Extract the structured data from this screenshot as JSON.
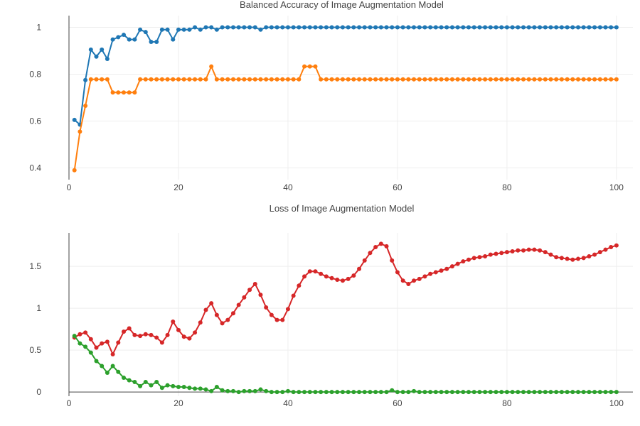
{
  "chart_data": [
    {
      "type": "line",
      "title": "Balanced Accuracy of Image Augmentation Model",
      "xlabel": "",
      "ylabel": "",
      "xlim": [
        0,
        103
      ],
      "ylim": [
        0.35,
        1.05
      ],
      "x_ticks": [
        "0",
        "20",
        "40",
        "60",
        "80",
        "100"
      ],
      "x_tick_values": [
        0,
        20,
        40,
        60,
        80,
        100
      ],
      "y_ticks": [
        "0.4",
        "0.6",
        "0.8",
        "1"
      ],
      "y_tick_values": [
        0.4,
        0.6,
        0.8,
        1.0
      ],
      "grid": true,
      "series": [
        {
          "color": "#1f77b4",
          "x": [
            1,
            2,
            3,
            4,
            5,
            6,
            7,
            8,
            9,
            10,
            11,
            12,
            13,
            14,
            15,
            16,
            17,
            18,
            19,
            20,
            21,
            22,
            23,
            24,
            25,
            26,
            27,
            28,
            29,
            30,
            31,
            32,
            33,
            34,
            35,
            36,
            37,
            38,
            39,
            40,
            41,
            42,
            43,
            44,
            45,
            46,
            47,
            48,
            49,
            50,
            51,
            52,
            53,
            54,
            55,
            56,
            57,
            58,
            59,
            60,
            61,
            62,
            63,
            64,
            65,
            66,
            67,
            68,
            69,
            70,
            71,
            72,
            73,
            74,
            75,
            76,
            77,
            78,
            79,
            80,
            81,
            82,
            83,
            84,
            85,
            86,
            87,
            88,
            89,
            90,
            91,
            92,
            93,
            94,
            95,
            96,
            97,
            98,
            99,
            100
          ],
          "values": [
            0.605,
            0.585,
            0.775,
            0.905,
            0.875,
            0.905,
            0.865,
            0.948,
            0.958,
            0.968,
            0.948,
            0.948,
            0.99,
            0.98,
            0.938,
            0.938,
            0.99,
            0.99,
            0.948,
            0.99,
            0.99,
            0.99,
            1.0,
            0.99,
            1.0,
            1.0,
            0.99,
            1.0,
            1.0,
            1.0,
            1.0,
            1.0,
            1.0,
            1.0,
            0.99,
            1.0,
            1.0,
            1.0,
            1.0,
            1.0,
            1.0,
            1.0,
            1.0,
            1.0,
            1.0,
            1.0,
            1.0,
            1.0,
            1.0,
            1.0,
            1.0,
            1.0,
            1.0,
            1.0,
            1.0,
            1.0,
            1.0,
            1.0,
            1.0,
            1.0,
            1.0,
            1.0,
            1.0,
            1.0,
            1.0,
            1.0,
            1.0,
            1.0,
            1.0,
            1.0,
            1.0,
            1.0,
            1.0,
            1.0,
            1.0,
            1.0,
            1.0,
            1.0,
            1.0,
            1.0,
            1.0,
            1.0,
            1.0,
            1.0,
            1.0,
            1.0,
            1.0,
            1.0,
            1.0,
            1.0,
            1.0,
            1.0,
            1.0,
            1.0,
            1.0,
            1.0,
            1.0,
            1.0,
            1.0,
            1.0
          ]
        },
        {
          "color": "#ff7f0e",
          "x": [
            1,
            2,
            3,
            4,
            5,
            6,
            7,
            8,
            9,
            10,
            11,
            12,
            13,
            14,
            15,
            16,
            17,
            18,
            19,
            20,
            21,
            22,
            23,
            24,
            25,
            26,
            27,
            28,
            29,
            30,
            31,
            32,
            33,
            34,
            35,
            36,
            37,
            38,
            39,
            40,
            41,
            42,
            43,
            44,
            45,
            46,
            47,
            48,
            49,
            50,
            51,
            52,
            53,
            54,
            55,
            56,
            57,
            58,
            59,
            60,
            61,
            62,
            63,
            64,
            65,
            66,
            67,
            68,
            69,
            70,
            71,
            72,
            73,
            74,
            75,
            76,
            77,
            78,
            79,
            80,
            81,
            82,
            83,
            84,
            85,
            86,
            87,
            88,
            89,
            90,
            91,
            92,
            93,
            94,
            95,
            96,
            97,
            98,
            99,
            100
          ],
          "values": [
            0.39,
            0.555,
            0.665,
            0.778,
            0.778,
            0.778,
            0.778,
            0.722,
            0.722,
            0.722,
            0.722,
            0.722,
            0.778,
            0.778,
            0.778,
            0.778,
            0.778,
            0.778,
            0.778,
            0.778,
            0.778,
            0.778,
            0.778,
            0.778,
            0.778,
            0.833,
            0.778,
            0.778,
            0.778,
            0.778,
            0.778,
            0.778,
            0.778,
            0.778,
            0.778,
            0.778,
            0.778,
            0.778,
            0.778,
            0.778,
            0.778,
            0.778,
            0.833,
            0.833,
            0.833,
            0.778,
            0.778,
            0.778,
            0.778,
            0.778,
            0.778,
            0.778,
            0.778,
            0.778,
            0.778,
            0.778,
            0.778,
            0.778,
            0.778,
            0.778,
            0.778,
            0.778,
            0.778,
            0.778,
            0.778,
            0.778,
            0.778,
            0.778,
            0.778,
            0.778,
            0.778,
            0.778,
            0.778,
            0.778,
            0.778,
            0.778,
            0.778,
            0.778,
            0.778,
            0.778,
            0.778,
            0.778,
            0.778,
            0.778,
            0.778,
            0.778,
            0.778,
            0.778,
            0.778,
            0.778,
            0.778,
            0.778,
            0.778,
            0.778,
            0.778,
            0.778,
            0.778,
            0.778,
            0.778,
            0.778
          ]
        }
      ]
    },
    {
      "type": "line",
      "title": "Loss of Image Augmentation Model",
      "xlabel": "",
      "ylabel": "",
      "xlim": [
        0,
        103
      ],
      "ylim": [
        -0.05,
        1.9
      ],
      "x_ticks": [
        "0",
        "20",
        "40",
        "60",
        "80",
        "100"
      ],
      "x_tick_values": [
        0,
        20,
        40,
        60,
        80,
        100
      ],
      "y_ticks": [
        "0",
        "0.5",
        "1",
        "1.5"
      ],
      "y_tick_values": [
        0,
        0.5,
        1.0,
        1.5
      ],
      "grid": true,
      "series": [
        {
          "color": "#d62728",
          "x": [
            1,
            2,
            3,
            4,
            5,
            6,
            7,
            8,
            9,
            10,
            11,
            12,
            13,
            14,
            15,
            16,
            17,
            18,
            19,
            20,
            21,
            22,
            23,
            24,
            25,
            26,
            27,
            28,
            29,
            30,
            31,
            32,
            33,
            34,
            35,
            36,
            37,
            38,
            39,
            40,
            41,
            42,
            43,
            44,
            45,
            46,
            47,
            48,
            49,
            50,
            51,
            52,
            53,
            54,
            55,
            56,
            57,
            58,
            59,
            60,
            61,
            62,
            63,
            64,
            65,
            66,
            67,
            68,
            69,
            70,
            71,
            72,
            73,
            74,
            75,
            76,
            77,
            78,
            79,
            80,
            81,
            82,
            83,
            84,
            85,
            86,
            87,
            88,
            89,
            90,
            91,
            92,
            93,
            94,
            95,
            96,
            97,
            98,
            99,
            100
          ],
          "values": [
            0.65,
            0.69,
            0.71,
            0.63,
            0.53,
            0.58,
            0.6,
            0.45,
            0.59,
            0.72,
            0.76,
            0.68,
            0.67,
            0.69,
            0.68,
            0.65,
            0.59,
            0.68,
            0.84,
            0.74,
            0.66,
            0.64,
            0.71,
            0.83,
            0.98,
            1.06,
            0.92,
            0.82,
            0.86,
            0.94,
            1.04,
            1.13,
            1.22,
            1.29,
            1.16,
            1.01,
            0.92,
            0.86,
            0.86,
            0.99,
            1.15,
            1.27,
            1.38,
            1.44,
            1.44,
            1.41,
            1.38,
            1.36,
            1.34,
            1.33,
            1.35,
            1.39,
            1.47,
            1.57,
            1.66,
            1.73,
            1.77,
            1.74,
            1.57,
            1.43,
            1.33,
            1.29,
            1.33,
            1.35,
            1.38,
            1.41,
            1.43,
            1.45,
            1.47,
            1.5,
            1.53,
            1.56,
            1.58,
            1.6,
            1.61,
            1.62,
            1.64,
            1.65,
            1.66,
            1.67,
            1.68,
            1.69,
            1.69,
            1.7,
            1.7,
            1.69,
            1.67,
            1.64,
            1.61,
            1.6,
            1.59,
            1.58,
            1.59,
            1.6,
            1.62,
            1.64,
            1.67,
            1.7,
            1.73,
            1.75
          ]
        },
        {
          "color": "#2ca02c",
          "x": [
            1,
            2,
            3,
            4,
            5,
            6,
            7,
            8,
            9,
            10,
            11,
            12,
            13,
            14,
            15,
            16,
            17,
            18,
            19,
            20,
            21,
            22,
            23,
            24,
            25,
            26,
            27,
            28,
            29,
            30,
            31,
            32,
            33,
            34,
            35,
            36,
            37,
            38,
            39,
            40,
            41,
            42,
            43,
            44,
            45,
            46,
            47,
            48,
            49,
            50,
            51,
            52,
            53,
            54,
            55,
            56,
            57,
            58,
            59,
            60,
            61,
            62,
            63,
            64,
            65,
            66,
            67,
            68,
            69,
            70,
            71,
            72,
            73,
            74,
            75,
            76,
            77,
            78,
            79,
            80,
            81,
            82,
            83,
            84,
            85,
            86,
            87,
            88,
            89,
            90,
            91,
            92,
            93,
            94,
            95,
            96,
            97,
            98,
            99,
            100
          ],
          "values": [
            0.67,
            0.58,
            0.54,
            0.47,
            0.37,
            0.31,
            0.23,
            0.31,
            0.24,
            0.17,
            0.14,
            0.12,
            0.07,
            0.12,
            0.08,
            0.12,
            0.05,
            0.08,
            0.07,
            0.06,
            0.06,
            0.05,
            0.04,
            0.04,
            0.03,
            0.01,
            0.06,
            0.02,
            0.01,
            0.01,
            0.0,
            0.01,
            0.01,
            0.01,
            0.03,
            0.01,
            0.0,
            0.0,
            0.0,
            0.01,
            0.0,
            0.0,
            0.0,
            0.0,
            0.0,
            0.0,
            0.0,
            0.0,
            0.0,
            0.0,
            0.0,
            0.0,
            0.0,
            0.0,
            0.0,
            0.0,
            0.0,
            0.0,
            0.02,
            0.0,
            0.0,
            0.0,
            0.01,
            0.0,
            0.0,
            0.0,
            0.0,
            0.0,
            0.0,
            0.0,
            0.0,
            0.0,
            0.0,
            0.0,
            0.0,
            0.0,
            0.0,
            0.0,
            0.0,
            0.0,
            0.0,
            0.0,
            0.0,
            0.0,
            0.0,
            0.0,
            0.0,
            0.0,
            0.0,
            0.0,
            0.0,
            0.0,
            0.0,
            0.0,
            0.0,
            0.0,
            0.0,
            0.0,
            0.0,
            0.0
          ]
        }
      ]
    }
  ]
}
